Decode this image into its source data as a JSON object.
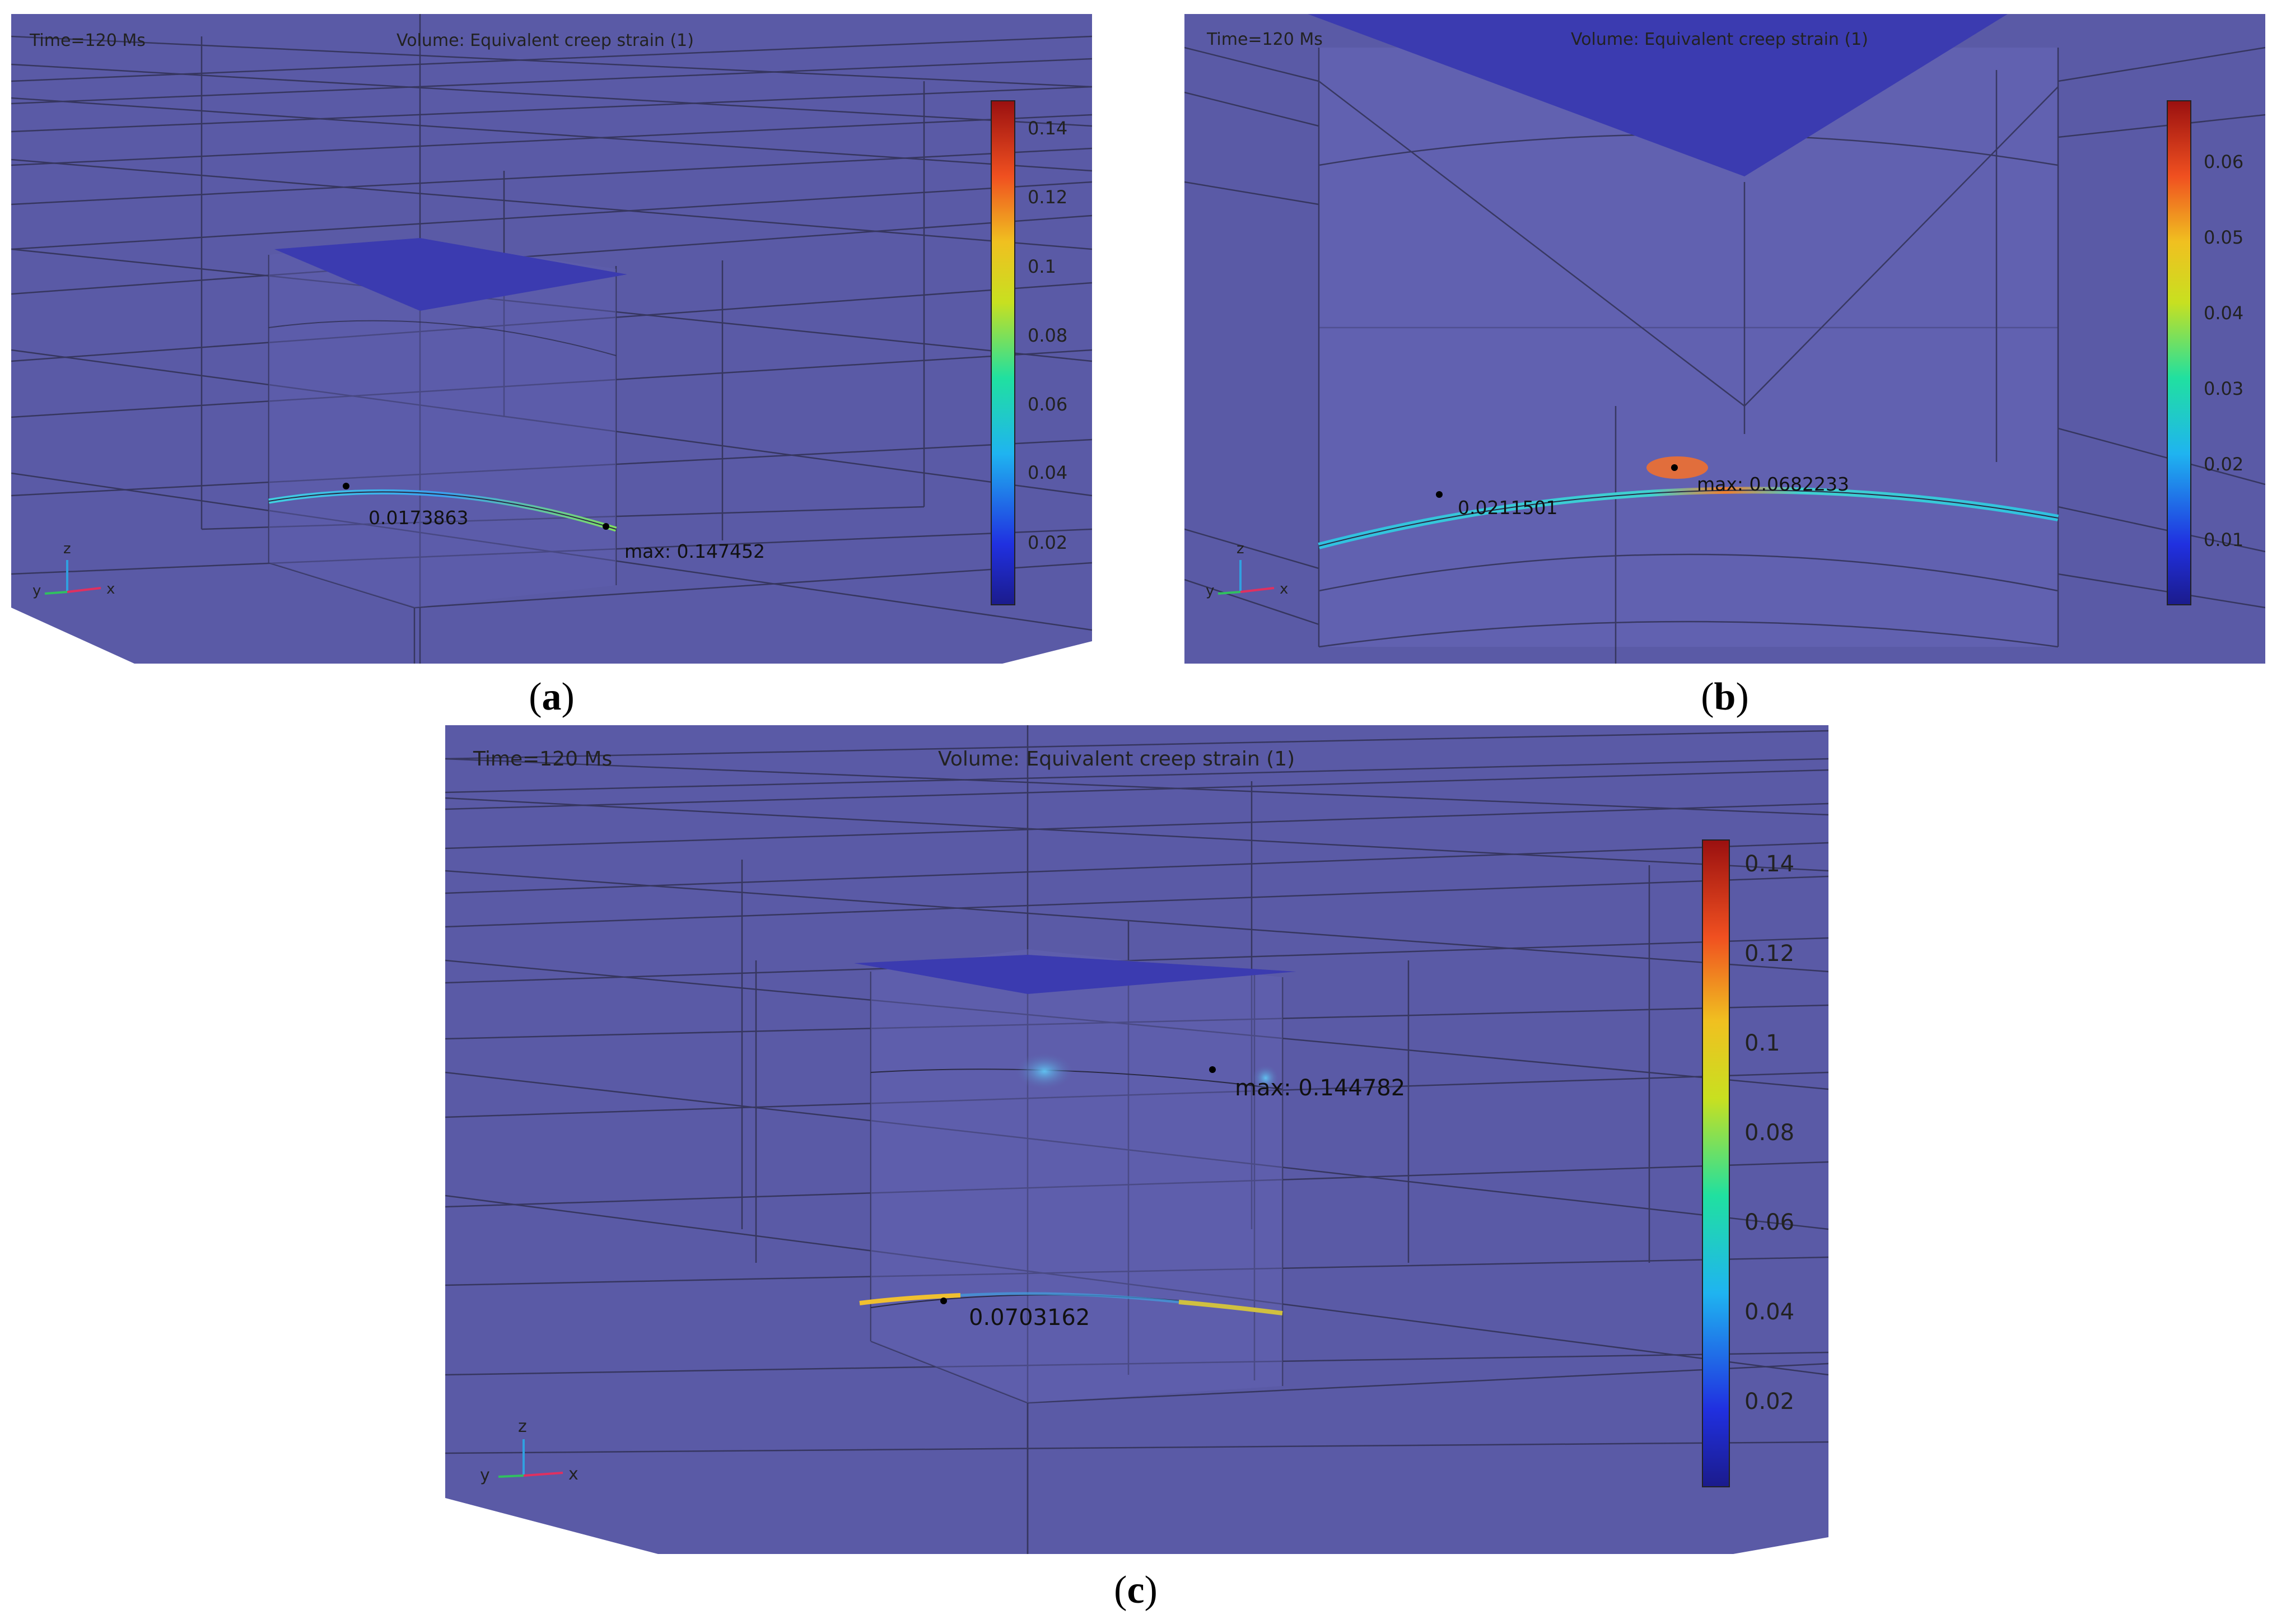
{
  "panels": [
    {
      "id": "a",
      "caption": "a",
      "time_label": "Time=120 Ms",
      "volume_label": "Volume: Equivalent creep strain (1)",
      "colorbar_ticks": [
        "0.14",
        "0.12",
        "0.1",
        "0.08",
        "0.06",
        "0.04",
        "0.02"
      ],
      "point_label": "0.0173863",
      "max_label": "max: 0.147452",
      "axes": {
        "z": "z",
        "y": "y",
        "x": "x"
      }
    },
    {
      "id": "b",
      "caption": "b",
      "time_label": "Time=120 Ms",
      "volume_label": "Volume: Equivalent creep strain (1)",
      "colorbar_ticks": [
        "0.06",
        "0.05",
        "0.04",
        "0.03",
        "0.02",
        "0.01"
      ],
      "point_label": "0.0211501",
      "max_label": "max: 0.0682233",
      "axes": {
        "z": "z",
        "y": "y",
        "x": "x"
      }
    },
    {
      "id": "c",
      "caption": "c",
      "time_label": "Time=120 Ms",
      "volume_label": "Volume: Equivalent creep strain (1)",
      "colorbar_ticks": [
        "0.14",
        "0.12",
        "0.1",
        "0.08",
        "0.06",
        "0.04",
        "0.02"
      ],
      "point_label": "0.0703162",
      "max_label": "max: 0.144782",
      "axes": {
        "z": "z",
        "y": "y",
        "x": "x"
      }
    }
  ],
  "colors": {
    "background": "#5a5aa6",
    "face_dark": "#3e3eb0",
    "wire": "#2a2a45"
  }
}
